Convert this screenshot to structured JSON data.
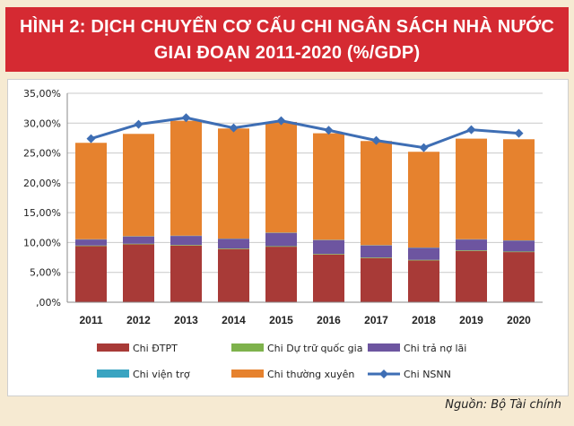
{
  "title": {
    "line1": "HÌNH 2: DỊCH CHUYỂN CƠ CẤU CHI NGÂN SÁCH NHÀ NƯỚC",
    "line2": "GIAI ĐOẠN 2011-2020  (%/GDP)"
  },
  "source": "Nguồn: Bộ Tài chính",
  "colors": {
    "header_bg": "#d52a32",
    "page_bg": "#f6ead2",
    "dtpt": "#a83a37",
    "du_tru": "#7eb24c",
    "tra_no": "#6d55a0",
    "vien_tro": "#3aa4c1",
    "thuong_xuyen": "#e6822e",
    "nsnn": "#3e6eb4"
  },
  "chart_data": {
    "type": "bar",
    "stacked": true,
    "categories": [
      "2011",
      "2012",
      "2013",
      "2014",
      "2015",
      "2016",
      "2017",
      "2018",
      "2019",
      "2020"
    ],
    "ylim": [
      0,
      35
    ],
    "yticks": [
      ",00%",
      "5,00%",
      "10,00%",
      "15,00%",
      "20,00%",
      "25,00%",
      "30,00%",
      "35,00%"
    ],
    "grid": true,
    "legend_position": "bottom",
    "series": [
      {
        "name": "Chi ĐTPT",
        "key": "dtpt",
        "kind": "bar",
        "values": [
          9.4,
          9.7,
          9.5,
          8.9,
          9.3,
          8.0,
          7.4,
          7.0,
          8.6,
          8.4
        ]
      },
      {
        "name": "Chi Dự trữ quốc gia",
        "key": "du_tru",
        "kind": "bar",
        "values": [
          0.1,
          0.1,
          0.1,
          0.1,
          0.1,
          0.1,
          0.1,
          0.1,
          0.1,
          0.1
        ]
      },
      {
        "name": "Chi trả nợ lãi",
        "key": "tra_no",
        "kind": "bar",
        "values": [
          1.0,
          1.2,
          1.5,
          1.6,
          2.2,
          2.3,
          2.0,
          2.0,
          1.8,
          1.8
        ]
      },
      {
        "name": "Chi viện trợ",
        "key": "vien_tro",
        "kind": "bar",
        "values": [
          0.05,
          0.05,
          0.05,
          0.05,
          0.05,
          0.05,
          0.05,
          0.05,
          0.05,
          0.05
        ]
      },
      {
        "name": "Chi thường xuyên",
        "key": "thuong_xuyen",
        "kind": "bar",
        "values": [
          16.15,
          17.15,
          19.25,
          18.45,
          18.55,
          17.85,
          17.45,
          16.05,
          16.85,
          16.95
        ]
      },
      {
        "name": "Chi NSNN",
        "key": "nsnn",
        "kind": "line",
        "values": [
          27.4,
          29.8,
          30.9,
          29.2,
          30.4,
          28.8,
          27.1,
          25.9,
          28.9,
          28.3
        ]
      }
    ]
  }
}
